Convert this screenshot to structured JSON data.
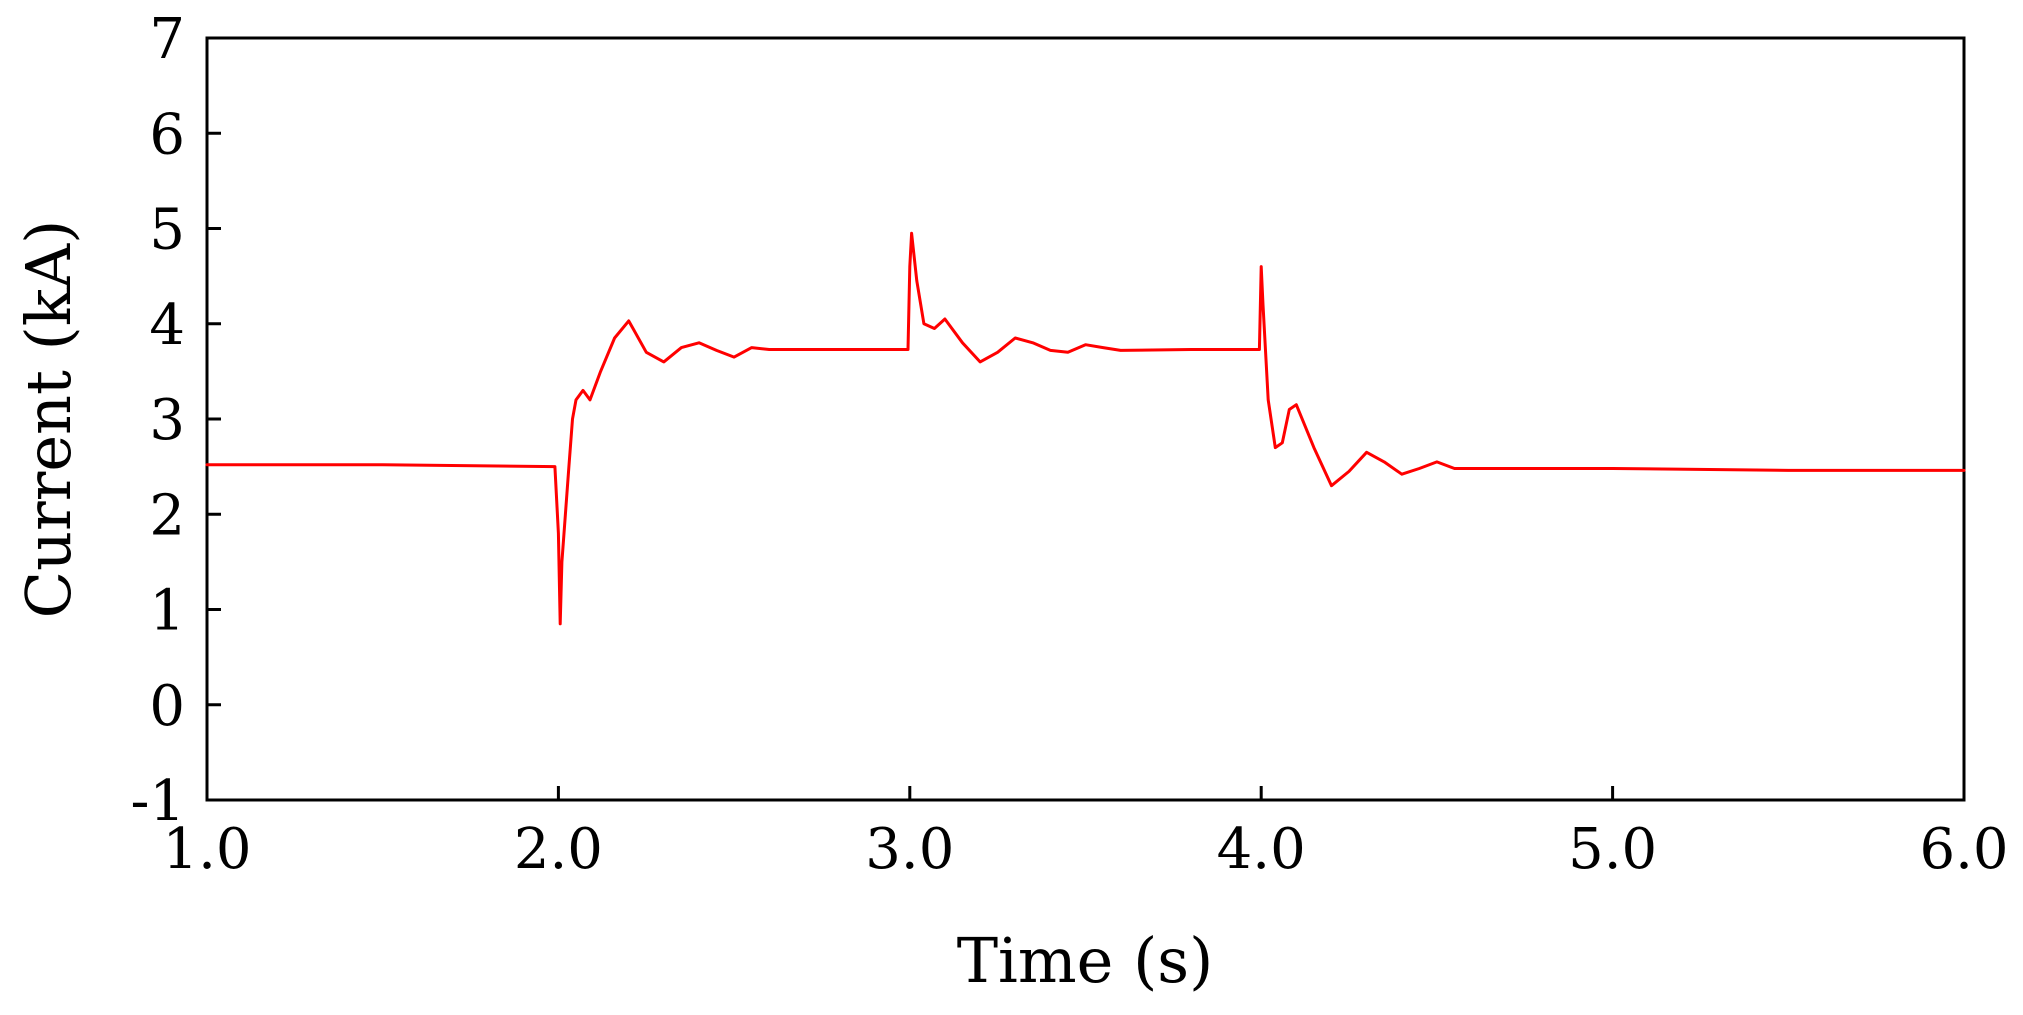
{
  "chart_data": {
    "type": "line",
    "title": "",
    "xlabel": "Time (s)",
    "ylabel": "Current (kA)",
    "xlim": [
      1.0,
      6.0
    ],
    "ylim": [
      -1,
      7
    ],
    "x_ticks": [
      "1.0",
      "2.0",
      "3.0",
      "4.0",
      "5.0",
      "6.0"
    ],
    "y_ticks": [
      "-1",
      "0",
      "1",
      "2",
      "3",
      "4",
      "5",
      "6",
      "7"
    ],
    "grid": false,
    "legend": "none",
    "series": [
      {
        "color": "#ff0000",
        "x": [
          1.0,
          1.5,
          1.99,
          2.0,
          2.005,
          2.01,
          2.02,
          2.03,
          2.04,
          2.05,
          2.07,
          2.09,
          2.12,
          2.16,
          2.2,
          2.22,
          2.25,
          2.3,
          2.35,
          2.4,
          2.45,
          2.5,
          2.55,
          2.6,
          2.8,
          2.995,
          3.0,
          3.005,
          3.02,
          3.04,
          3.07,
          3.1,
          3.15,
          3.2,
          3.25,
          3.3,
          3.35,
          3.4,
          3.45,
          3.5,
          3.55,
          3.6,
          3.8,
          3.995,
          4.0,
          4.005,
          4.02,
          4.04,
          4.06,
          4.08,
          4.1,
          4.15,
          4.2,
          4.25,
          4.3,
          4.35,
          4.4,
          4.45,
          4.5,
          4.55,
          4.6,
          5.0,
          5.5,
          6.0
        ],
        "y": [
          2.52,
          2.52,
          2.5,
          1.8,
          0.85,
          1.5,
          2.0,
          2.5,
          3.0,
          3.2,
          3.3,
          3.2,
          3.5,
          3.85,
          4.03,
          3.9,
          3.7,
          3.6,
          3.75,
          3.8,
          3.72,
          3.65,
          3.75,
          3.73,
          3.73,
          3.73,
          4.6,
          4.95,
          4.45,
          4.0,
          3.95,
          4.05,
          3.8,
          3.6,
          3.7,
          3.85,
          3.8,
          3.72,
          3.7,
          3.78,
          3.75,
          3.72,
          3.73,
          3.73,
          4.6,
          4.2,
          3.2,
          2.7,
          2.75,
          3.1,
          3.15,
          2.7,
          2.3,
          2.45,
          2.65,
          2.55,
          2.42,
          2.48,
          2.55,
          2.48,
          2.48,
          2.48,
          2.46,
          2.46
        ]
      }
    ]
  }
}
